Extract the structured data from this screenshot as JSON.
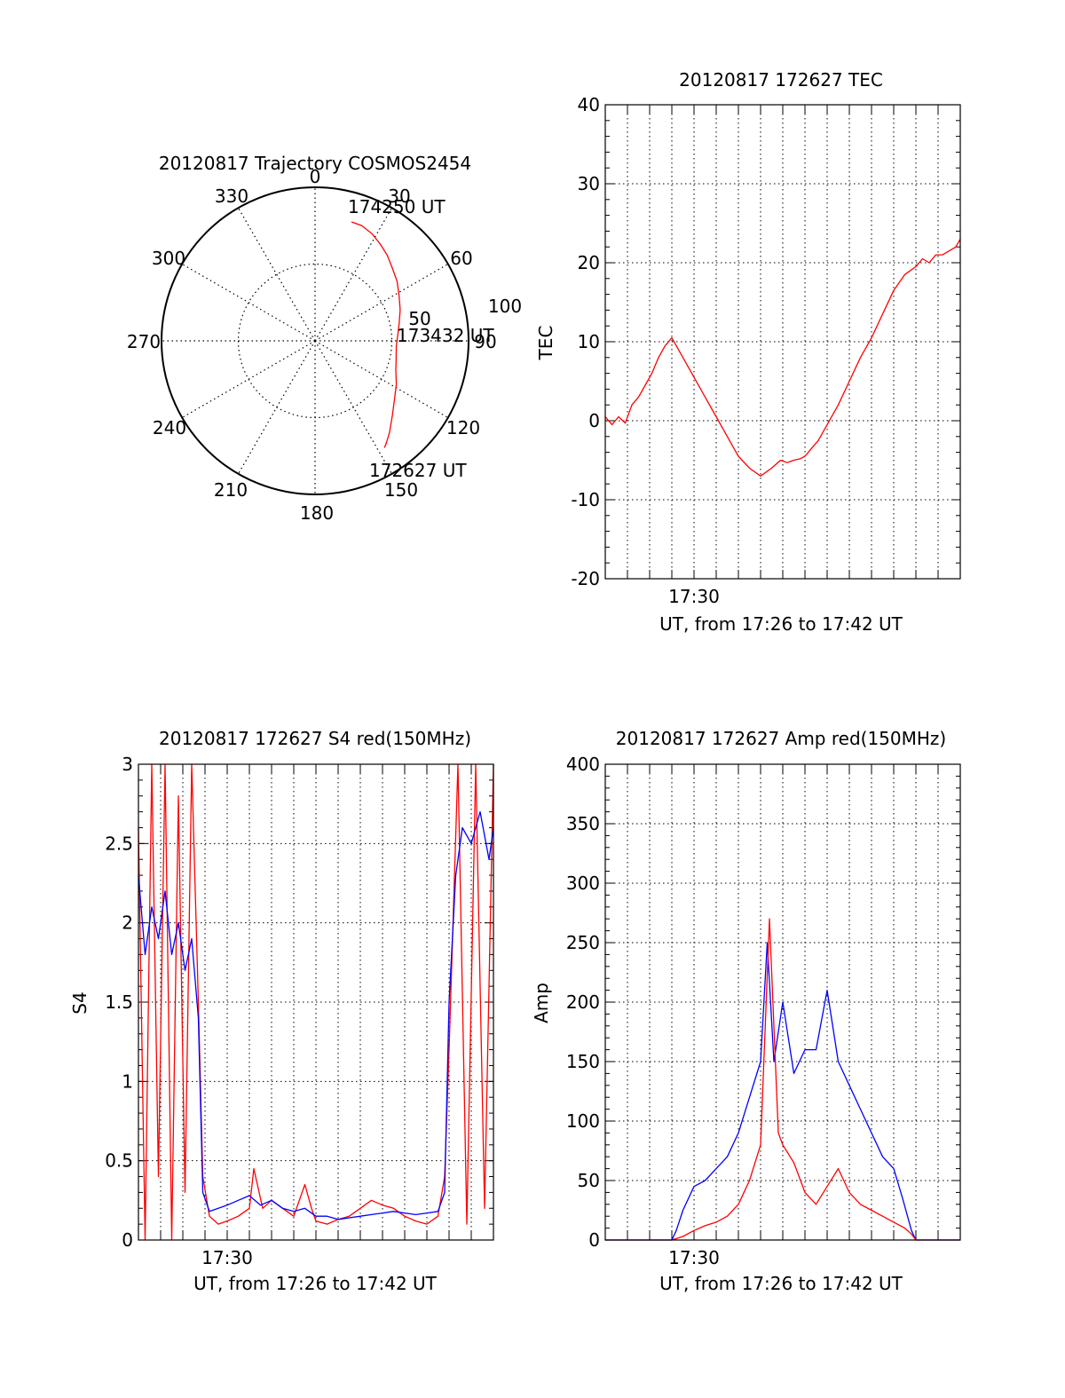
{
  "chart_data": [
    {
      "type": "polar",
      "title": "20120817 Trajectory COSMOS2454",
      "azimuth_labels": [
        "0",
        "30",
        "60",
        "90",
        "120",
        "150",
        "180",
        "210",
        "240",
        "270",
        "300",
        "330"
      ],
      "radial_labels": [
        "50",
        "100"
      ],
      "rlim": [
        0,
        100
      ],
      "grid": true,
      "series": [
        {
          "color": "#ff0000",
          "az": [
            17,
            22,
            28,
            34,
            40,
            47,
            54,
            62,
            70,
            78,
            86,
            94,
            102,
            110,
            118,
            126,
            134,
            141,
            145,
            147
          ],
          "r": [
            81,
            81,
            79,
            76,
            73,
            69,
            66,
            62,
            59,
            56,
            54,
            53,
            54,
            56,
            60,
            64,
            70,
            77,
            81,
            83
          ]
        }
      ],
      "annotations": [
        {
          "text": "174250 UT",
          "az": 17,
          "r": 81
        },
        {
          "text": "173432 UT",
          "az": 94,
          "r": 53
        },
        {
          "text": "172627 UT",
          "az": 147,
          "r": 83
        }
      ]
    },
    {
      "type": "line",
      "title": "20120817 172627 TEC",
      "xlabel": "UT, from 17:26 to 17:42 UT",
      "ylabel": "TEC",
      "xlim": [
        0,
        16
      ],
      "ylim": [
        -20,
        40
      ],
      "yticks": [
        -20,
        -10,
        0,
        10,
        20,
        30,
        40
      ],
      "xtick_labels": [
        {
          "x": 4,
          "label": "17:30"
        }
      ],
      "grid": true,
      "series": [
        {
          "color": "#ff0000",
          "x": [
            0.0,
            0.3,
            0.6,
            0.9,
            1.2,
            1.5,
            1.8,
            2.1,
            2.4,
            2.7,
            3.0,
            3.5,
            4.0,
            4.5,
            5.0,
            5.5,
            6.0,
            6.5,
            7.0,
            7.5,
            7.9,
            8.2,
            8.5,
            8.8,
            9.0,
            9.3,
            9.6,
            10.0,
            10.5,
            11.0,
            11.5,
            12.0,
            12.5,
            13.0,
            13.5,
            14.0,
            14.3,
            14.6,
            14.9,
            15.2,
            15.5,
            15.8,
            16.0
          ],
          "y": [
            0.5,
            -0.5,
            0.5,
            -0.3,
            2.0,
            3.0,
            4.5,
            6.0,
            8.0,
            9.5,
            10.5,
            8.0,
            5.5,
            3.0,
            0.5,
            -2.0,
            -4.5,
            -6.0,
            -7.0,
            -6.0,
            -5.0,
            -5.3,
            -5.0,
            -4.8,
            -4.5,
            -3.5,
            -2.5,
            -0.5,
            2.0,
            5.0,
            8.0,
            10.5,
            13.5,
            16.5,
            18.5,
            19.5,
            20.5,
            20.0,
            21.0,
            21.0,
            21.5,
            22.0,
            23.0
          ]
        }
      ]
    },
    {
      "type": "line",
      "title": "20120817 172627 S4 red(150MHz)",
      "xlabel": "UT, from 17:26 to 17:42 UT",
      "ylabel": "S4",
      "xlim": [
        0,
        16
      ],
      "ylim": [
        0,
        3
      ],
      "yticks": [
        0,
        0.5,
        1,
        1.5,
        2,
        2.5,
        3
      ],
      "ytick_labels": [
        "0",
        "0.5",
        "1",
        "1.5",
        "2",
        "2.5",
        "3"
      ],
      "xtick_labels": [
        {
          "x": 4,
          "label": "17:30"
        }
      ],
      "grid": true,
      "series": [
        {
          "color": "#ff0000",
          "x": [
            0.0,
            0.3,
            0.6,
            0.9,
            1.2,
            1.5,
            1.8,
            2.1,
            2.4,
            2.7,
            2.9,
            3.2,
            3.6,
            4.0,
            4.5,
            5.0,
            5.2,
            5.6,
            6.0,
            6.5,
            7.0,
            7.5,
            7.8,
            8.0,
            8.5,
            9.0,
            9.5,
            10.0,
            10.5,
            11.0,
            11.5,
            12.0,
            12.5,
            13.0,
            13.5,
            13.8,
            14.0,
            14.4,
            14.8,
            15.2,
            15.6,
            16.0
          ],
          "y": [
            2.6,
            0.0,
            3.0,
            0.4,
            3.0,
            0.0,
            2.8,
            0.3,
            3.0,
            1.5,
            0.4,
            0.15,
            0.1,
            0.12,
            0.15,
            0.2,
            0.45,
            0.2,
            0.25,
            0.2,
            0.15,
            0.35,
            0.2,
            0.12,
            0.1,
            0.13,
            0.15,
            0.2,
            0.25,
            0.22,
            0.2,
            0.15,
            0.12,
            0.1,
            0.15,
            0.4,
            1.2,
            3.0,
            0.1,
            3.0,
            0.2,
            3.0
          ]
        },
        {
          "color": "#0000ff",
          "x": [
            0.0,
            0.3,
            0.6,
            0.9,
            1.2,
            1.5,
            1.8,
            2.1,
            2.4,
            2.7,
            2.9,
            3.2,
            3.6,
            4.0,
            4.5,
            5.0,
            5.5,
            6.0,
            6.5,
            7.0,
            7.5,
            8.0,
            8.5,
            9.0,
            9.5,
            10.0,
            10.5,
            11.0,
            11.5,
            12.0,
            12.5,
            13.0,
            13.5,
            13.8,
            14.0,
            14.3,
            14.6,
            15.0,
            15.4,
            15.8,
            16.0
          ],
          "y": [
            2.3,
            1.8,
            2.1,
            1.9,
            2.2,
            1.8,
            2.0,
            1.7,
            1.9,
            1.4,
            0.3,
            0.18,
            0.2,
            0.22,
            0.25,
            0.28,
            0.22,
            0.25,
            0.2,
            0.18,
            0.2,
            0.15,
            0.15,
            0.13,
            0.14,
            0.15,
            0.16,
            0.17,
            0.18,
            0.17,
            0.16,
            0.17,
            0.18,
            0.3,
            1.5,
            2.3,
            2.6,
            2.5,
            2.7,
            2.4,
            2.6
          ]
        }
      ]
    },
    {
      "type": "line",
      "title": "20120817 172627 Amp red(150MHz)",
      "xlabel": "UT, from 17:26 to 17:42 UT",
      "ylabel": "Amp",
      "xlim": [
        0,
        16
      ],
      "ylim": [
        0,
        400
      ],
      "yticks": [
        0,
        50,
        100,
        150,
        200,
        250,
        300,
        350,
        400
      ],
      "xtick_labels": [
        {
          "x": 4,
          "label": "17:30"
        }
      ],
      "grid": true,
      "series": [
        {
          "color": "#0000ff",
          "x": [
            0.0,
            1.0,
            2.0,
            2.5,
            3.0,
            3.2,
            3.5,
            4.0,
            4.5,
            5.0,
            5.5,
            6.0,
            6.5,
            7.0,
            7.3,
            7.6,
            8.0,
            8.5,
            9.0,
            9.5,
            10.0,
            10.5,
            11.0,
            11.5,
            12.0,
            12.5,
            13.0,
            13.4,
            13.8,
            14.0,
            15.0,
            16.0
          ],
          "y": [
            0,
            0,
            0,
            0,
            0,
            8,
            25,
            45,
            50,
            60,
            70,
            90,
            120,
            150,
            250,
            150,
            200,
            140,
            160,
            160,
            210,
            150,
            130,
            110,
            90,
            70,
            60,
            35,
            8,
            0,
            0,
            0
          ]
        },
        {
          "color": "#ff0000",
          "x": [
            0.0,
            1.0,
            2.0,
            3.0,
            3.5,
            4.0,
            4.5,
            5.0,
            5.5,
            6.0,
            6.5,
            7.0,
            7.4,
            7.8,
            8.0,
            8.5,
            9.0,
            9.5,
            10.0,
            10.5,
            11.0,
            11.5,
            12.0,
            12.5,
            13.0,
            13.5,
            13.8,
            14.0,
            15.0,
            16.0
          ],
          "y": [
            0,
            0,
            0,
            0,
            3,
            8,
            12,
            15,
            20,
            30,
            50,
            80,
            270,
            90,
            80,
            65,
            40,
            30,
            45,
            60,
            40,
            30,
            25,
            20,
            15,
            10,
            5,
            0,
            0,
            0
          ]
        }
      ]
    }
  ]
}
